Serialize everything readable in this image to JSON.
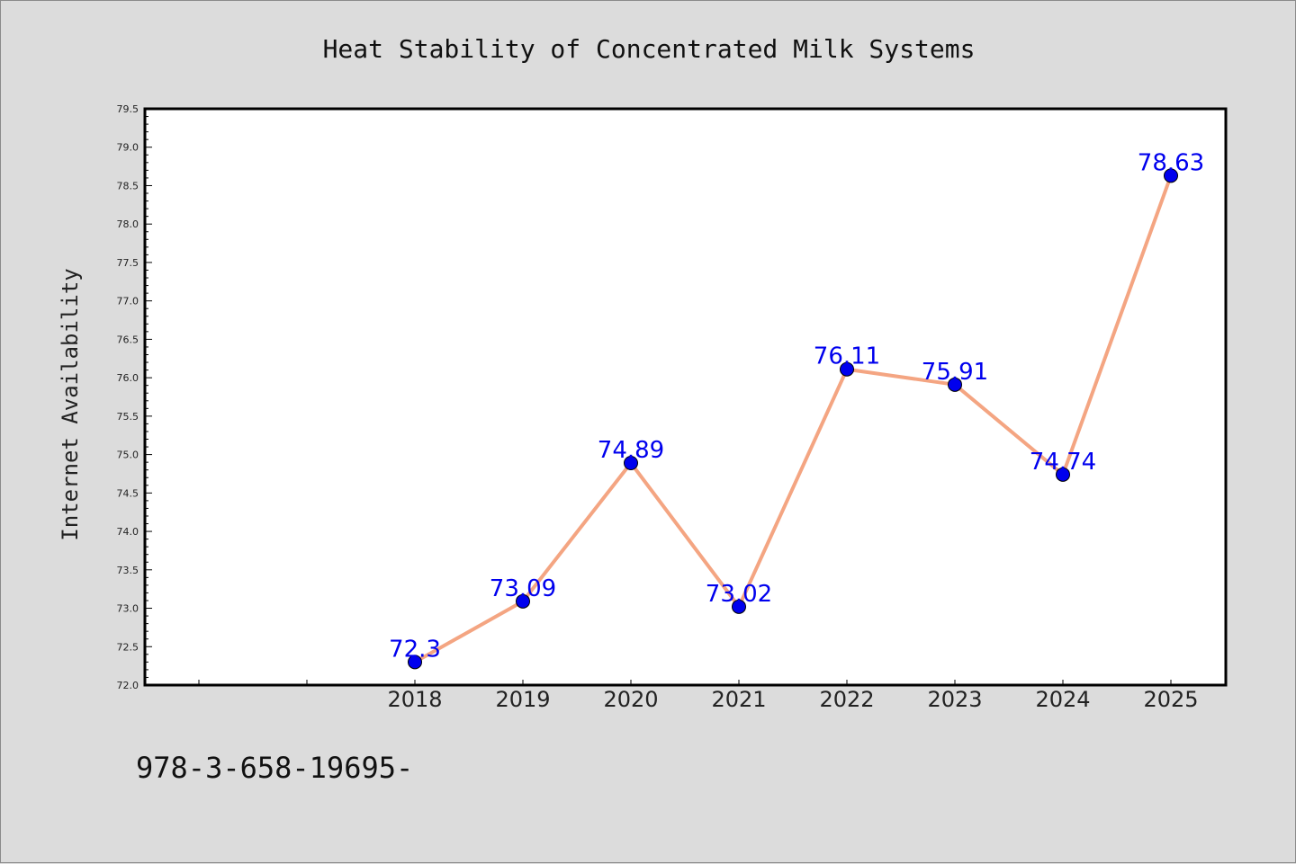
{
  "chart_data": {
    "type": "line",
    "title": "Heat Stability of Concentrated Milk Systems",
    "xlabel": "",
    "ylabel": "Internet Availability",
    "categories": [
      "2018",
      "2019",
      "2020",
      "2021",
      "2022",
      "2023",
      "2024",
      "2025"
    ],
    "values": [
      72.3,
      73.09,
      74.89,
      73.02,
      76.11,
      75.91,
      74.74,
      78.63
    ],
    "data_labels": [
      "72.3",
      "73.09",
      "74.89",
      "73.02",
      "76.11",
      "75.91",
      "74.74",
      "78.63"
    ],
    "ylim": [
      72.0,
      79.5
    ],
    "yticks": [
      "72.0",
      "72.5",
      "73.0",
      "73.5",
      "74.0",
      "74.5",
      "75.0",
      "75.5",
      "76.0",
      "76.5",
      "77.0",
      "77.5",
      "78.0",
      "78.5",
      "79.0",
      "79.5"
    ],
    "grid": false,
    "legend": "none",
    "colors": {
      "line": "#f4a582",
      "marker": "#0000ee",
      "label": "#0000ee",
      "plot_bg": "#ffffff",
      "page_bg": "#dcdcdc"
    }
  },
  "footer_text": "978-3-658-19695-"
}
